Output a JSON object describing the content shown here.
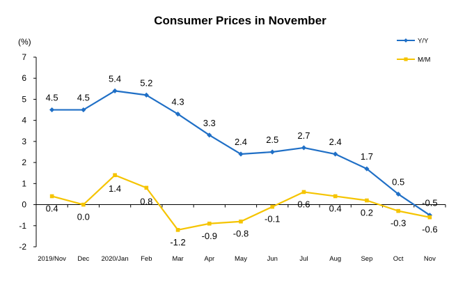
{
  "chart_data": {
    "type": "line",
    "title": "Consumer Prices in November",
    "ylabel": "(%)",
    "ylim": [
      -2,
      7
    ],
    "yticks": [
      "-2",
      "-1",
      "0",
      "1",
      "2",
      "3",
      "4",
      "5",
      "6",
      "7"
    ],
    "categories": [
      "2019/Nov",
      "Dec",
      "2020/Jan",
      "Feb",
      "Mar",
      "Apr",
      "May",
      "Jun",
      "Jul",
      "Aug",
      "Sep",
      "Oct",
      "Nov"
    ],
    "series": [
      {
        "name": "Y/Y",
        "color": "#1f6fc6",
        "marker": "diamond",
        "values": [
          4.5,
          4.5,
          5.4,
          5.2,
          4.3,
          3.3,
          2.4,
          2.5,
          2.7,
          2.4,
          1.7,
          0.5,
          -0.5
        ],
        "labels": [
          "4.5",
          "4.5",
          "5.4",
          "5.2",
          "4.3",
          "3.3",
          "2.4",
          "2.5",
          "2.7",
          "2.4",
          "1.7",
          "0.5",
          "-0.5"
        ]
      },
      {
        "name": "M/M",
        "color": "#f5c400",
        "marker": "square",
        "values": [
          0.4,
          0.0,
          1.4,
          0.8,
          -1.2,
          -0.9,
          -0.8,
          -0.1,
          0.6,
          0.4,
          0.2,
          -0.3,
          -0.6
        ],
        "labels": [
          "0.4",
          "0.0",
          "1.4",
          "0.8",
          "-1.2",
          "-0.9",
          "-0.8",
          "-0.1",
          "0.6",
          "0.4",
          "0.2",
          "-0.3",
          "-0.6"
        ]
      }
    ],
    "grid": false,
    "legend": "top-right"
  }
}
